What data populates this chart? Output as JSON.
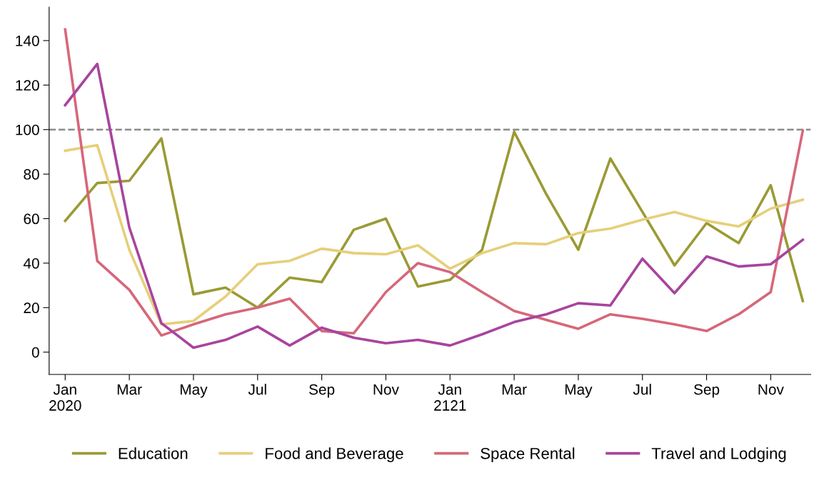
{
  "chart_data": {
    "type": "line",
    "categories": [
      "Jan\n2020",
      null,
      "Mar",
      null,
      "May",
      null,
      "Jul",
      null,
      "Sep",
      null,
      "Nov",
      null,
      "Jan\n2121",
      null,
      "Mar",
      null,
      "May",
      null,
      "Jul",
      null,
      "Sep",
      null,
      "Nov",
      null
    ],
    "series": [
      {
        "name": "Education",
        "color": "#9a9a35",
        "values": [
          59,
          76,
          77,
          96,
          26,
          29,
          20,
          33.5,
          31.5,
          55,
          60,
          29.5,
          32.5,
          46,
          99,
          71,
          46,
          87,
          63,
          39,
          58,
          49,
          75,
          23
        ]
      },
      {
        "name": "Food and Beverage",
        "color": "#e6cf7a",
        "values": [
          90.5,
          93,
          46,
          12.5,
          14,
          25,
          39.5,
          41,
          46.5,
          44.5,
          44,
          48,
          37.5,
          44.5,
          49,
          48.5,
          53.5,
          55.5,
          59.5,
          63,
          59,
          56.5,
          64.5,
          68.5
        ]
      },
      {
        "name": "Space Rental",
        "color": "#d6677a",
        "values": [
          145,
          41,
          28,
          7.5,
          12.5,
          17,
          20,
          24,
          9.5,
          8.5,
          27,
          40,
          36,
          27,
          18.5,
          14.5,
          10.5,
          17,
          15,
          12.5,
          9.5,
          17,
          27,
          99.5
        ]
      },
      {
        "name": "Travel and Lodging",
        "color": "#a8449e",
        "values": [
          111,
          129.5,
          56,
          13,
          2,
          5.5,
          11.5,
          3,
          11,
          6.5,
          4,
          5.5,
          3,
          8,
          13.5,
          17,
          22,
          21,
          42,
          26.5,
          43,
          38.5,
          39.5,
          50.5
        ]
      }
    ],
    "ylim": [
      -10,
      155
    ],
    "yticks": [
      0,
      20,
      40,
      60,
      80,
      100,
      120,
      140
    ],
    "ref_lines": [
      {
        "axis": "y",
        "value": 100,
        "color": "#8c8c8c",
        "line_style": "dashed"
      }
    ],
    "legend": "bottom",
    "grid": false,
    "marker": "none",
    "line_style": "solid"
  }
}
